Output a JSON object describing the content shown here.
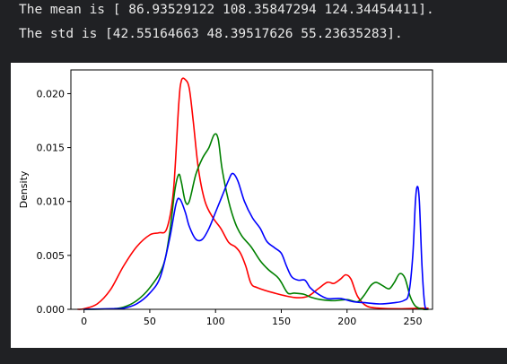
{
  "output": {
    "mean_line": "The mean is [ 86.93529122 108.35847294 124.34454411].",
    "std_line": "The std is [42.55164663 48.39517626 55.23635283]."
  },
  "chart_data": {
    "type": "line",
    "title": "",
    "xlabel": "",
    "ylabel": "Density",
    "xlim": [
      -10,
      265
    ],
    "ylim": [
      0,
      0.0222
    ],
    "x_ticks": [
      0,
      50,
      100,
      150,
      200,
      250
    ],
    "x_tick_labels": [
      "0",
      "50",
      "100",
      "150",
      "200",
      "250"
    ],
    "y_ticks": [
      0.0,
      0.005,
      0.01,
      0.015,
      0.02
    ],
    "y_tick_labels": [
      "0.000",
      "0.005",
      "0.010",
      "0.015",
      "0.020"
    ],
    "grid": false,
    "series": [
      {
        "color": "#ff0000",
        "points": [
          [
            -5,
            0
          ],
          [
            0,
            5e-05
          ],
          [
            10,
            0.0005
          ],
          [
            20,
            0.0018
          ],
          [
            30,
            0.004
          ],
          [
            40,
            0.0058
          ],
          [
            50,
            0.0069
          ],
          [
            57,
            0.0071
          ],
          [
            63,
            0.0075
          ],
          [
            68,
            0.011
          ],
          [
            72,
            0.019
          ],
          [
            74,
            0.0212
          ],
          [
            77,
            0.0213
          ],
          [
            80,
            0.0205
          ],
          [
            83,
            0.0175
          ],
          [
            87,
            0.013
          ],
          [
            92,
            0.01
          ],
          [
            98,
            0.0085
          ],
          [
            104,
            0.0075
          ],
          [
            110,
            0.0062
          ],
          [
            115,
            0.0058
          ],
          [
            119,
            0.0052
          ],
          [
            123,
            0.004
          ],
          [
            127,
            0.0024
          ],
          [
            132,
            0.002
          ],
          [
            145,
            0.0015
          ],
          [
            160,
            0.0011
          ],
          [
            170,
            0.0012
          ],
          [
            178,
            0.0019
          ],
          [
            185,
            0.0025
          ],
          [
            190,
            0.0024
          ],
          [
            195,
            0.0028
          ],
          [
            199,
            0.0032
          ],
          [
            203,
            0.0028
          ],
          [
            208,
            0.0012
          ],
          [
            215,
            0.0003
          ],
          [
            225,
            0.0001
          ],
          [
            240,
            5e-05
          ],
          [
            255,
            0.0001
          ],
          [
            262,
            0.0001
          ]
        ]
      },
      {
        "color": "#008000",
        "points": [
          [
            0,
            0
          ],
          [
            20,
            5e-05
          ],
          [
            30,
            0.0002
          ],
          [
            40,
            0.0008
          ],
          [
            50,
            0.002
          ],
          [
            60,
            0.004
          ],
          [
            65,
            0.007
          ],
          [
            69,
            0.011
          ],
          [
            72,
            0.0125
          ],
          [
            74,
            0.0118
          ],
          [
            77,
            0.01
          ],
          [
            80,
            0.01
          ],
          [
            85,
            0.0125
          ],
          [
            90,
            0.014
          ],
          [
            95,
            0.015
          ],
          [
            99,
            0.0162
          ],
          [
            102,
            0.0158
          ],
          [
            105,
            0.013
          ],
          [
            110,
            0.01
          ],
          [
            115,
            0.008
          ],
          [
            120,
            0.0068
          ],
          [
            127,
            0.0058
          ],
          [
            134,
            0.0045
          ],
          [
            140,
            0.0037
          ],
          [
            147,
            0.003
          ],
          [
            150,
            0.0025
          ],
          [
            155,
            0.0015
          ],
          [
            160,
            0.0015
          ],
          [
            167,
            0.0014
          ],
          [
            173,
            0.0011
          ],
          [
            180,
            0.0009
          ],
          [
            190,
            0.0008
          ],
          [
            200,
            0.0009
          ],
          [
            208,
            0.0007
          ],
          [
            213,
            0.0013
          ],
          [
            218,
            0.0022
          ],
          [
            222,
            0.0025
          ],
          [
            227,
            0.0022
          ],
          [
            232,
            0.0019
          ],
          [
            236,
            0.0025
          ],
          [
            240,
            0.0033
          ],
          [
            244,
            0.0029
          ],
          [
            248,
            0.0012
          ],
          [
            252,
            0.0003
          ],
          [
            258,
            0
          ],
          [
            262,
            0
          ]
        ]
      },
      {
        "color": "#0000ff",
        "points": [
          [
            0,
            0
          ],
          [
            20,
            5e-05
          ],
          [
            30,
            0.0001
          ],
          [
            40,
            0.0005
          ],
          [
            50,
            0.0015
          ],
          [
            58,
            0.003
          ],
          [
            65,
            0.0065
          ],
          [
            70,
            0.0098
          ],
          [
            73,
            0.0102
          ],
          [
            77,
            0.009
          ],
          [
            80,
            0.0077
          ],
          [
            85,
            0.0065
          ],
          [
            90,
            0.0065
          ],
          [
            95,
            0.0075
          ],
          [
            100,
            0.009
          ],
          [
            105,
            0.0105
          ],
          [
            110,
            0.012
          ],
          [
            113,
            0.0126
          ],
          [
            117,
            0.0119
          ],
          [
            122,
            0.01
          ],
          [
            128,
            0.0085
          ],
          [
            134,
            0.0075
          ],
          [
            139,
            0.0063
          ],
          [
            145,
            0.0057
          ],
          [
            150,
            0.0052
          ],
          [
            154,
            0.004
          ],
          [
            158,
            0.003
          ],
          [
            163,
            0.0027
          ],
          [
            168,
            0.0027
          ],
          [
            172,
            0.002
          ],
          [
            177,
            0.0015
          ],
          [
            185,
            0.001
          ],
          [
            195,
            0.001
          ],
          [
            205,
            0.0007
          ],
          [
            215,
            0.0006
          ],
          [
            225,
            0.0005
          ],
          [
            235,
            0.0006
          ],
          [
            243,
            0.0008
          ],
          [
            247,
            0.0015
          ],
          [
            250,
            0.005
          ],
          [
            252,
            0.01
          ],
          [
            253.5,
            0.0114
          ],
          [
            255,
            0.01
          ],
          [
            257,
            0.004
          ],
          [
            259,
            0.0005
          ],
          [
            261,
            0
          ]
        ]
      }
    ]
  }
}
